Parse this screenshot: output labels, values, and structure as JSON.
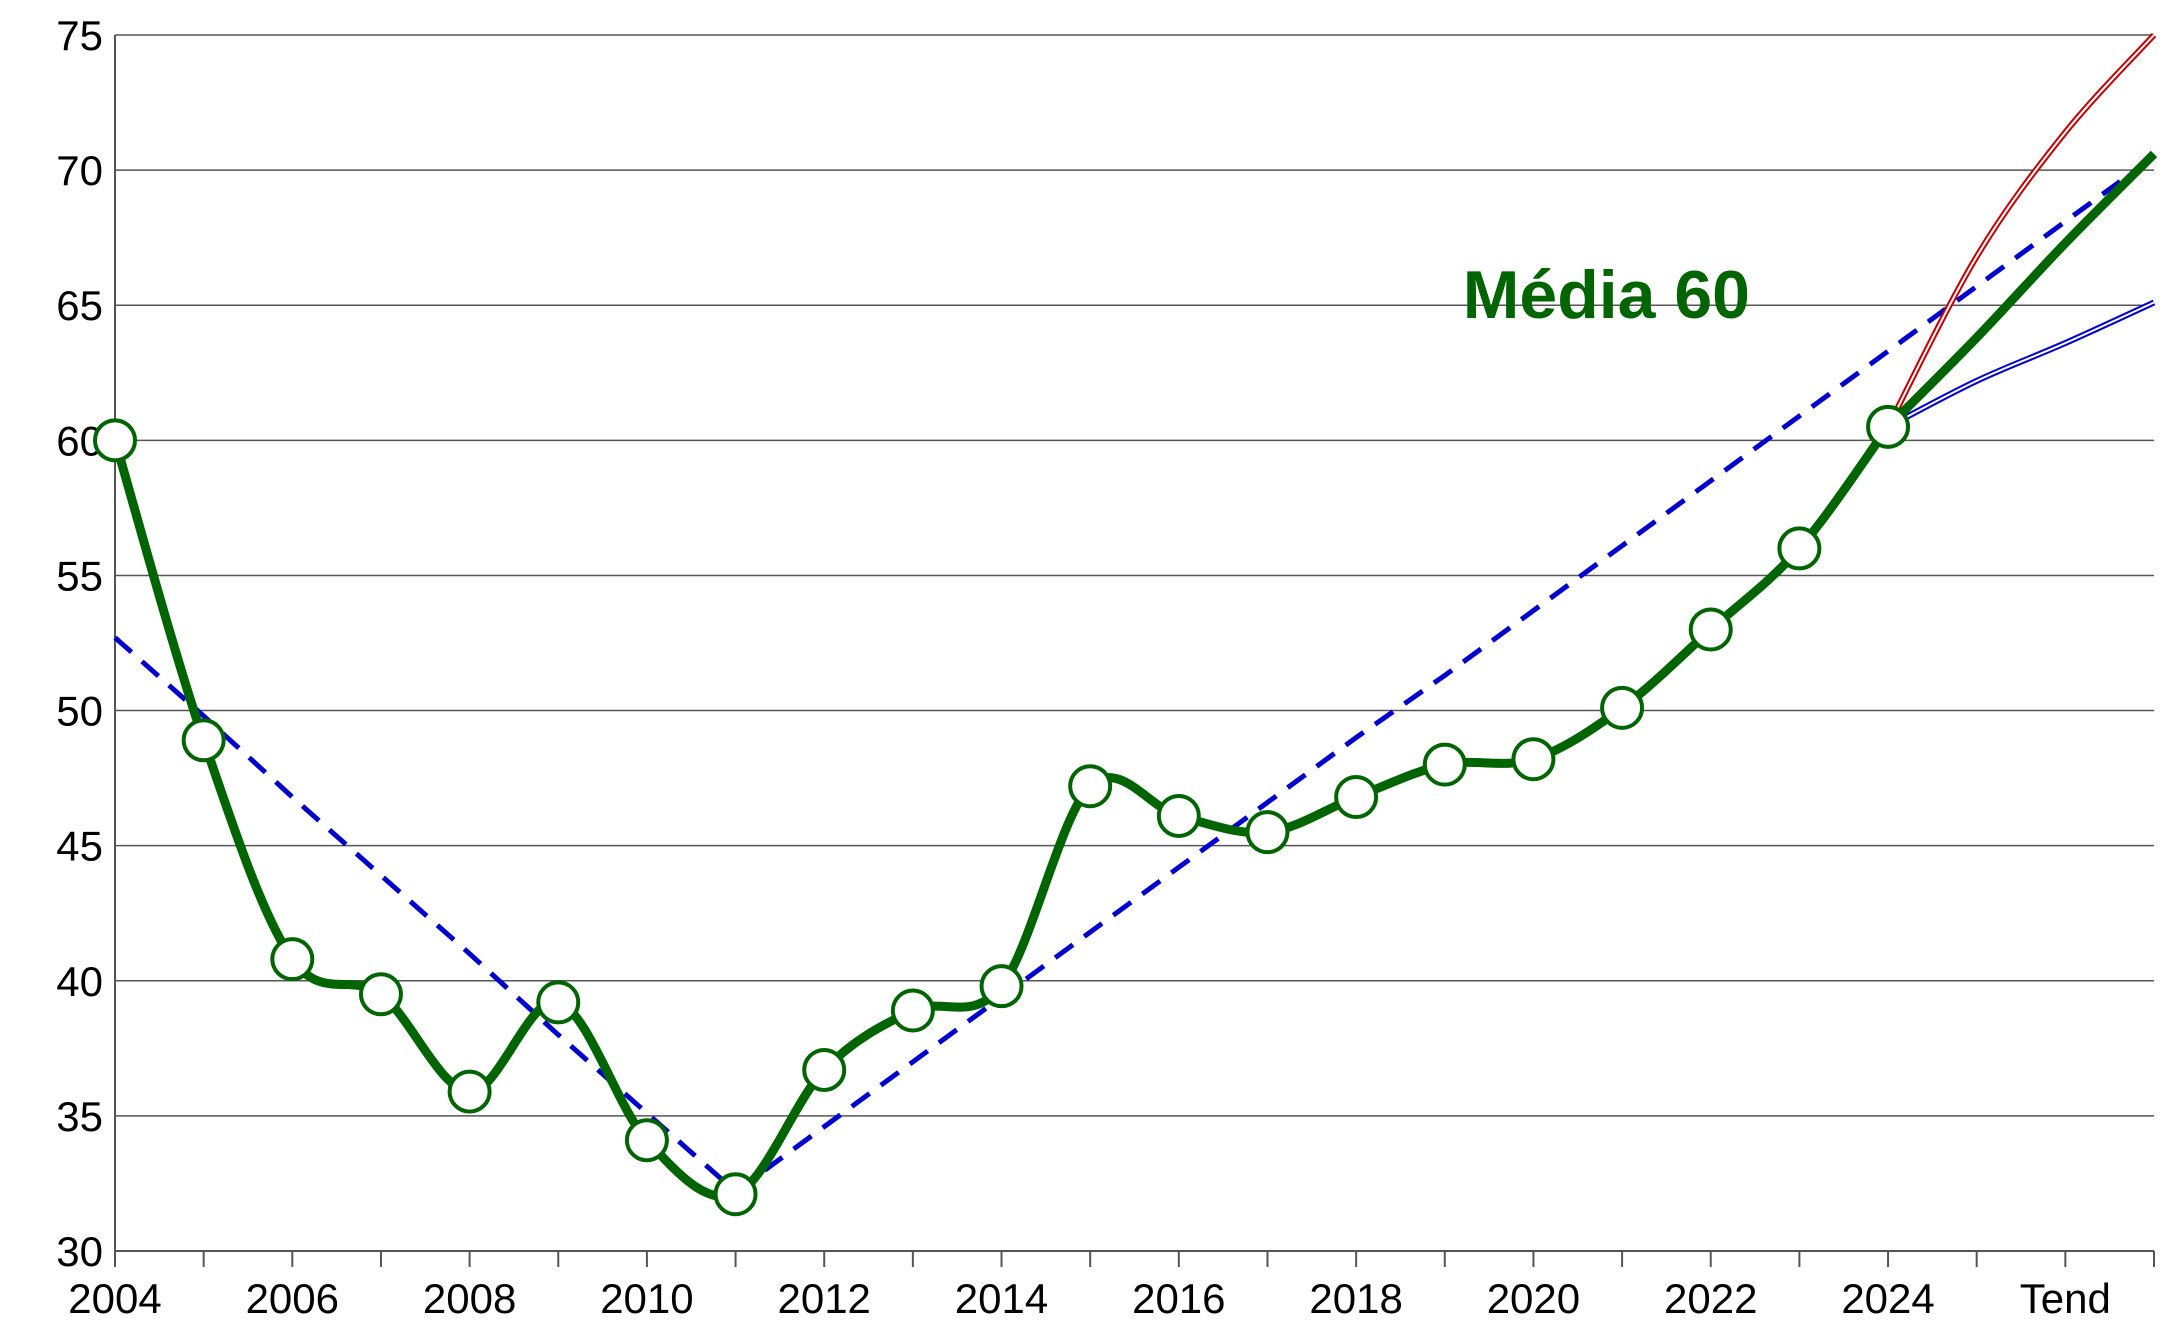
{
  "chart_data": {
    "type": "line",
    "categories": [
      "2004",
      null,
      "2006",
      null,
      "2008",
      null,
      "2010",
      null,
      "2012",
      null,
      "2014",
      null,
      "2016",
      null,
      "2018",
      null,
      "2020",
      null,
      "2022",
      null,
      "2024",
      null,
      "Tend",
      null
    ],
    "series": [
      {
        "color": "#006400",
        "style": "main",
        "values": [
          60,
          48.9,
          40.8,
          39.5,
          35.9,
          39.2,
          34.1,
          32.1,
          36.7,
          38.9,
          39.8,
          47.2,
          46.1,
          45.5,
          46.8,
          48,
          48.2,
          50.1,
          53,
          56,
          60.5,
          null,
          null,
          null
        ]
      },
      {
        "color": "#006400",
        "style": "projection",
        "values": [
          null,
          null,
          null,
          null,
          null,
          null,
          null,
          null,
          null,
          null,
          null,
          null,
          null,
          null,
          null,
          null,
          null,
          null,
          null,
          null,
          60.5,
          63.8,
          67.3,
          70.6
        ]
      },
      {
        "color": "#c00000",
        "style": "outline",
        "values": [
          null,
          null,
          null,
          null,
          null,
          null,
          null,
          null,
          null,
          null,
          null,
          null,
          null,
          null,
          null,
          null,
          null,
          null,
          null,
          null,
          60.5,
          66.8,
          71.4,
          75
        ]
      },
      {
        "color": "#0000cc",
        "style": "outline",
        "values": [
          null,
          null,
          null,
          null,
          null,
          null,
          null,
          null,
          null,
          null,
          null,
          null,
          null,
          null,
          null,
          null,
          null,
          null,
          null,
          null,
          60.5,
          62.2,
          63.6,
          65.1
        ]
      },
      {
        "color": "#0000cc",
        "style": "dashed",
        "values": [
          52.7,
          49.8,
          46.8,
          43.9,
          41.0,
          38.0,
          35.1,
          32.2,
          null,
          null,
          null,
          null,
          null,
          null,
          null,
          null,
          null,
          null,
          null,
          null,
          null,
          null,
          null,
          null
        ]
      },
      {
        "color": "#0000cc",
        "style": "dashed",
        "values": [
          null,
          null,
          null,
          null,
          null,
          null,
          null,
          32.2,
          34.6,
          37.0,
          39.4,
          41.8,
          44.2,
          46.6,
          49.0,
          51.3,
          53.7,
          56.1,
          58.5,
          60.9,
          63.3,
          65.7,
          68.1,
          70.5
        ]
      }
    ],
    "annotation": "Média  60",
    "ylim": [
      30,
      75
    ],
    "yticks": [
      30,
      35,
      40,
      45,
      50,
      55,
      60,
      65,
      70,
      75
    ],
    "grid": true
  }
}
